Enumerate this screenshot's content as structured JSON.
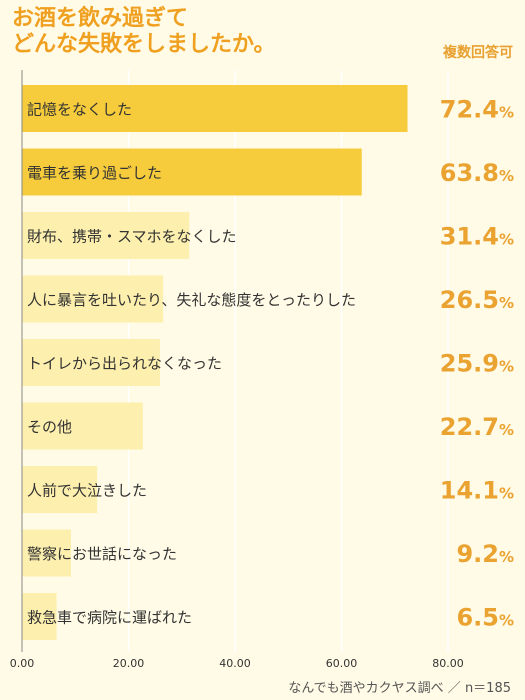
{
  "chart_data": {
    "type": "bar",
    "orientation": "horizontal",
    "title_lines": [
      "お酒を飲み過ぎて",
      "どんな失敗をしましたか。"
    ],
    "note": "複数回答可",
    "source": "なんでも酒やカクヤス調べ ／ n＝185",
    "categories": [
      "記憶をなくした",
      "電車を乗り過ごした",
      "財布、携帯・スマホをなくした",
      "人に暴言を吐いたり、失礼な態度をとったりした",
      "トイレから出られなくなった",
      "その他",
      "人前で大泣きした",
      "警察にお世話になった",
      "救急車で病院に運ばれた"
    ],
    "values": [
      72.4,
      63.8,
      31.4,
      26.5,
      25.9,
      22.7,
      14.1,
      9.2,
      6.5
    ],
    "value_labels": [
      "72.4",
      "63.8",
      "31.4",
      "26.5",
      "25.9",
      "22.7",
      "14.1",
      "9.2",
      "6.5"
    ],
    "value_suffix": "%",
    "x_ticks": [
      "0.00",
      "20.00",
      "40.00",
      "60.00",
      "80.00"
    ],
    "xlim": [
      0,
      80
    ],
    "grid": true,
    "colors": {
      "background": "#fffbe6",
      "bar_highlight": "#f6cc3c",
      "bar_normal": "#fdefae",
      "value_text": "#eaa230",
      "title_text": "#f0a020",
      "grid": "#ffffff",
      "axis": "#888888"
    }
  }
}
